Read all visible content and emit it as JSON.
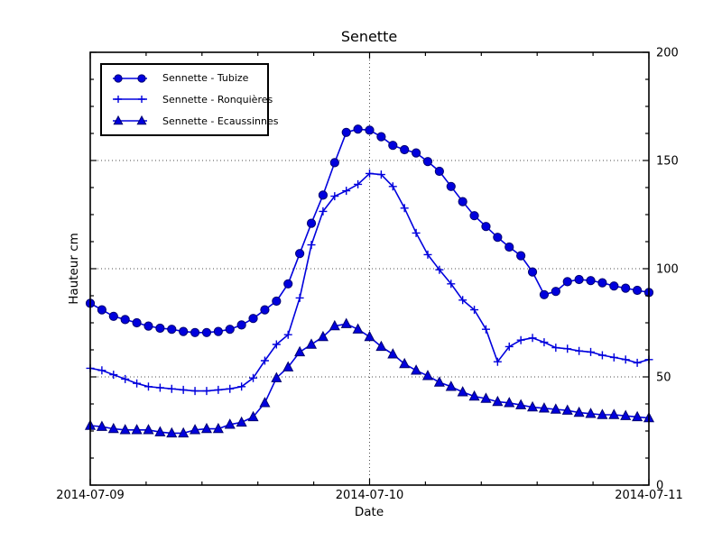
{
  "chart_data": {
    "type": "line",
    "title": "Senette",
    "xlabel": "Date",
    "ylabel": "Hauteur cm",
    "x_unit": "hours after 2014-07-09 00:00",
    "xlim": [
      0,
      48
    ],
    "ylim": [
      0,
      200
    ],
    "x_ticks": [
      {
        "hour": 0,
        "label": "2014-07-09"
      },
      {
        "hour": 24,
        "label": "2014-07-10"
      },
      {
        "hour": 48,
        "label": "2014-07-11"
      }
    ],
    "y_ticks": [
      0,
      50,
      100,
      150,
      200
    ],
    "minor_ticks": {
      "x_step_hours": 4.8,
      "y_step": 12.5
    },
    "grid": {
      "style": "dotted",
      "y_values": [
        50,
        100,
        150
      ],
      "x_hours": [
        24
      ]
    },
    "legend_position": "upper left",
    "line_color": "#0000dd",
    "marker_edge_color": "#000070",
    "grid_color": "#4d4d4d",
    "x": [
      0,
      1,
      2,
      3,
      4,
      5,
      6,
      7,
      8,
      9,
      10,
      11,
      12,
      13,
      14,
      15,
      16,
      17,
      18,
      19,
      20,
      21,
      22,
      23,
      24,
      25,
      26,
      27,
      28,
      29,
      30,
      31,
      32,
      33,
      34,
      35,
      36,
      37,
      38,
      39,
      40,
      41,
      42,
      43,
      44,
      45,
      46,
      47,
      48
    ],
    "series": [
      {
        "name": "Sennette - Tubize",
        "marker": "circle",
        "values": [
          84,
          81,
          78,
          76.5,
          75,
          73.5,
          72.5,
          72,
          71,
          70.5,
          70.5,
          71,
          72,
          74,
          77,
          81,
          85,
          93,
          107,
          121,
          134,
          149,
          163,
          164.5,
          164,
          161,
          157,
          155,
          153.5,
          149.5,
          145,
          138,
          131,
          124.5,
          119.5,
          114.5,
          110,
          106,
          98.5,
          88,
          89.5,
          94,
          95,
          94.5,
          93.5,
          92,
          91,
          90,
          89
        ]
      },
      {
        "name": "Sennette - Ronquières",
        "marker": "plus",
        "values": [
          54,
          53,
          51,
          49,
          47,
          45.5,
          45,
          44.5,
          44,
          43.5,
          43.5,
          44,
          44.5,
          45.5,
          49.5,
          57.5,
          65,
          69.5,
          86.5,
          111,
          126.5,
          133.5,
          136,
          139,
          144,
          143.5,
          138,
          128,
          116.5,
          106.5,
          99.5,
          93,
          85.5,
          81,
          72,
          57,
          64,
          67,
          68,
          66,
          63.5,
          63,
          62,
          61.5,
          60,
          59,
          58,
          56.5,
          58
        ]
      },
      {
        "name": "Sennette - Ecaussinnes",
        "marker": "triangle",
        "values": [
          27.5,
          27,
          26,
          25.5,
          25.5,
          25.5,
          24.5,
          24,
          24,
          25.5,
          26,
          26,
          28,
          29,
          31.5,
          38,
          49.5,
          54.5,
          61.5,
          65,
          68.5,
          73.5,
          74.5,
          72,
          68.5,
          64,
          60.5,
          56,
          53,
          50.5,
          47.5,
          45.5,
          43,
          41,
          40,
          38.5,
          38,
          37,
          36,
          35.5,
          35,
          34.5,
          33.5,
          33,
          32.5,
          32.5,
          32,
          31.5,
          31
        ]
      }
    ]
  }
}
